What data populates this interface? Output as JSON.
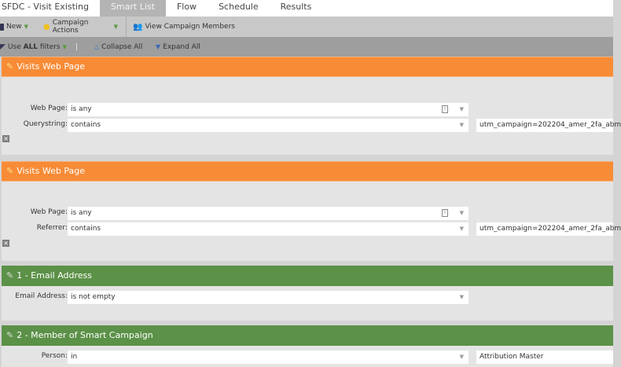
{
  "tabs": [
    "SFDC - Visit Existing",
    "Smart List",
    "Flow",
    "Schedule",
    "Results"
  ],
  "active_tab": "Smart List",
  "toolbar": {
    "new": "New",
    "campaign_actions": "Campaign Actions",
    "view_members": "View Campaign Members"
  },
  "filterbar": {
    "use": "Use ",
    "all": "ALL",
    "filters": " filters",
    "divider": "|",
    "collapse": "Collapse All",
    "expand": "Expand All"
  },
  "colors": {
    "orange": "#f88b36",
    "green": "#5c9148"
  },
  "filters": [
    {
      "title": "Visits Web Page",
      "rows": [
        {
          "label": "Web Page:",
          "value": "is any"
        },
        {
          "label": "Querystring:",
          "value": "contains",
          "extra": "utm_campaign=202204_amer_2fa_abm"
        }
      ]
    },
    {
      "title": "Visits Web Page",
      "rows": [
        {
          "label": "Web Page:",
          "value": "is any"
        },
        {
          "label": "Referrer:",
          "value": "contains",
          "extra": "utm_campaign=202204_amer_2fa_abm"
        }
      ]
    },
    {
      "title": "1 - Email Address",
      "rows": [
        {
          "label": "Email Address:",
          "value": "is not empty"
        }
      ]
    },
    {
      "title": "2 - Member of Smart Campaign",
      "rows": [
        {
          "label": "Person:",
          "value": "in",
          "extra": "Attribution Master"
        }
      ]
    }
  ]
}
